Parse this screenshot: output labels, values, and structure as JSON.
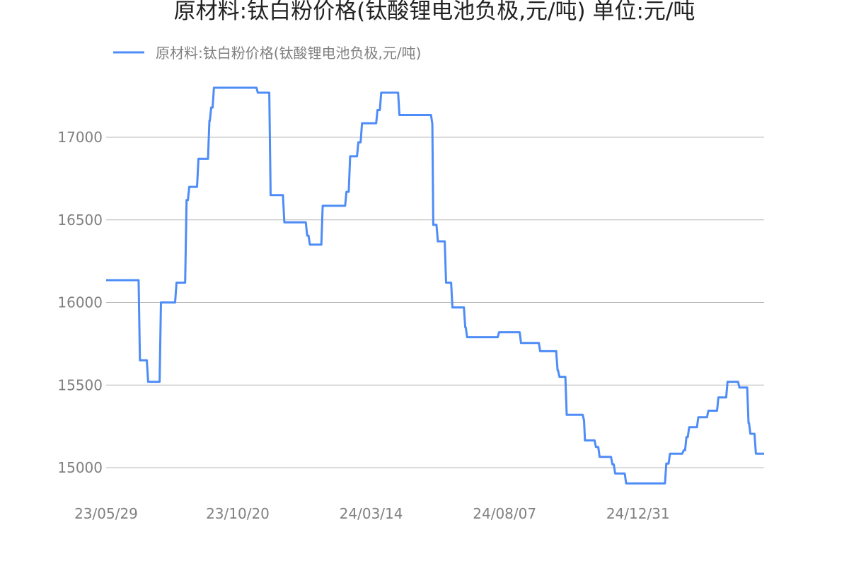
{
  "chart_data": {
    "type": "line",
    "title": "原材料:钛白粉价格(钛酸锂电池负极,元/吨) 单位:元/吨",
    "xlabel": "",
    "ylabel": "",
    "xlim": [
      "2023-05-29",
      "2025-05-18"
    ],
    "ylim": [
      14830,
      17360
    ],
    "yticks": [
      15000,
      15500,
      16000,
      16500,
      17000
    ],
    "xticks": [
      "23/05/29",
      "23/10/20",
      "24/03/14",
      "24/08/07",
      "24/12/31"
    ],
    "xtick_dates": [
      "2023-05-29",
      "2023-10-20",
      "2024-03-14",
      "2024-08-07",
      "2024-12-31"
    ],
    "grid": "horizontal",
    "legend_position": "top-left",
    "series": [
      {
        "name": "原材料:钛白粉价格(钛酸锂电池负极,元/吨)",
        "color": "#4e8cf7",
        "step": true,
        "points": [
          [
            "2023-05-29",
            16135
          ],
          [
            "2023-07-05",
            15650
          ],
          [
            "2023-07-14",
            15520
          ],
          [
            "2023-07-28",
            16000
          ],
          [
            "2023-08-14",
            16120
          ],
          [
            "2023-08-25",
            16620
          ],
          [
            "2023-08-28",
            16700
          ],
          [
            "2023-09-07",
            16870
          ],
          [
            "2023-09-19",
            17100
          ],
          [
            "2023-09-21",
            17180
          ],
          [
            "2023-09-24",
            17300
          ],
          [
            "2023-11-11",
            17270
          ],
          [
            "2023-11-25",
            16650
          ],
          [
            "2023-12-10",
            16485
          ],
          [
            "2024-01-04",
            16405
          ],
          [
            "2024-01-07",
            16350
          ],
          [
            "2024-01-21",
            16585
          ],
          [
            "2024-02-16",
            16670
          ],
          [
            "2024-02-20",
            16885
          ],
          [
            "2024-02-29",
            16970
          ],
          [
            "2024-03-04",
            17085
          ],
          [
            "2024-03-21",
            17165
          ],
          [
            "2024-03-25",
            17270
          ],
          [
            "2024-04-14",
            17135
          ],
          [
            "2024-05-20",
            17080
          ],
          [
            "2024-05-21",
            16470
          ],
          [
            "2024-05-26",
            16370
          ],
          [
            "2024-06-04",
            16120
          ],
          [
            "2024-06-11",
            15970
          ],
          [
            "2024-06-25",
            15850
          ],
          [
            "2024-06-27",
            15790
          ],
          [
            "2024-08-01",
            15820
          ],
          [
            "2024-08-25",
            15755
          ],
          [
            "2024-09-15",
            15705
          ],
          [
            "2024-10-04",
            15590
          ],
          [
            "2024-10-06",
            15550
          ],
          [
            "2024-10-14",
            15320
          ],
          [
            "2024-11-02",
            15285
          ],
          [
            "2024-11-03",
            15165
          ],
          [
            "2024-11-15",
            15125
          ],
          [
            "2024-11-19",
            15065
          ],
          [
            "2024-12-03",
            15020
          ],
          [
            "2024-12-06",
            14965
          ],
          [
            "2024-12-18",
            14905
          ],
          [
            "2025-01-31",
            15025
          ],
          [
            "2025-02-04",
            15085
          ],
          [
            "2025-02-19",
            15105
          ],
          [
            "2025-02-22",
            15185
          ],
          [
            "2025-02-25",
            15245
          ],
          [
            "2025-03-07",
            15305
          ],
          [
            "2025-03-18",
            15345
          ],
          [
            "2025-03-29",
            15425
          ],
          [
            "2025-04-08",
            15520
          ],
          [
            "2025-04-21",
            15485
          ],
          [
            "2025-05-01",
            15270
          ],
          [
            "2025-05-03",
            15205
          ],
          [
            "2025-05-09",
            15085
          ],
          [
            "2025-05-18",
            15085
          ]
        ]
      }
    ]
  }
}
